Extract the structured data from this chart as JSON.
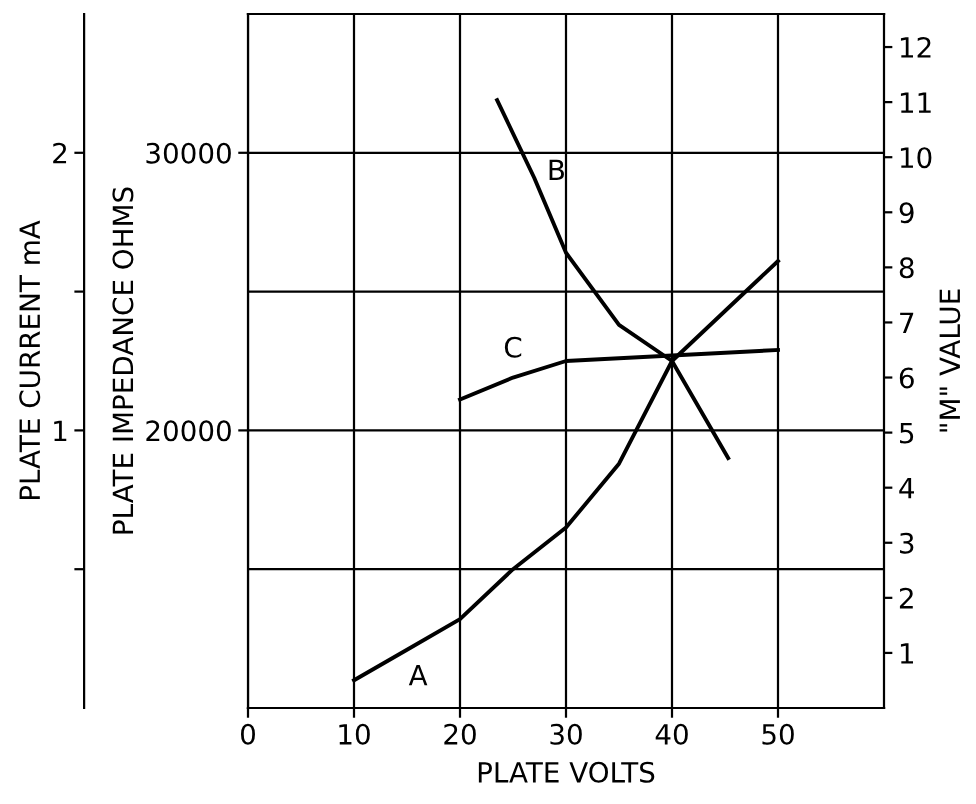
{
  "chart_data": {
    "type": "line",
    "xlabel": "PLATE VOLTS",
    "ylabel": "PLATE CURRENT mA",
    "y3label": "PLATE IMPEDANCE OHMS",
    "y2label": "\"M\" VALUE",
    "xlim": [
      0,
      60
    ],
    "xticks": [
      0,
      10,
      20,
      30,
      40,
      50
    ],
    "ylim": [
      0,
      2.5
    ],
    "yticks": [
      {
        "value": 0.5,
        "label": null
      },
      1,
      {
        "value": 1.5,
        "label": null
      },
      2
    ],
    "y3lim": [
      10000,
      35000
    ],
    "y3ticks": [
      20000,
      30000
    ],
    "y2lim": [
      0,
      12.6
    ],
    "y2ticks": [
      1,
      2,
      3,
      4,
      5,
      6,
      7,
      8,
      9,
      10,
      11,
      12
    ],
    "grid": true,
    "series": [
      {
        "color": "#000000",
        "axis": "y",
        "x": [
          10,
          15,
          20,
          25,
          30,
          35,
          40,
          45,
          50
        ],
        "values": [
          0.1,
          0.21,
          0.32,
          0.5,
          0.65,
          0.88,
          1.25,
          1.43,
          1.61
        ]
      },
      {
        "color": "#000000",
        "axis": "y3",
        "x": [
          23.5,
          27,
          30,
          35,
          40,
          45.3
        ],
        "values": [
          31900,
          29100,
          26400,
          23800,
          22500,
          19000
        ]
      },
      {
        "color": "#000000",
        "axis": "y2",
        "x": [
          20,
          25,
          30,
          40,
          50
        ],
        "values": [
          5.6,
          6.0,
          6.3,
          6.4,
          6.5
        ]
      }
    ],
    "annotations": [
      "A",
      "B",
      "C"
    ]
  }
}
